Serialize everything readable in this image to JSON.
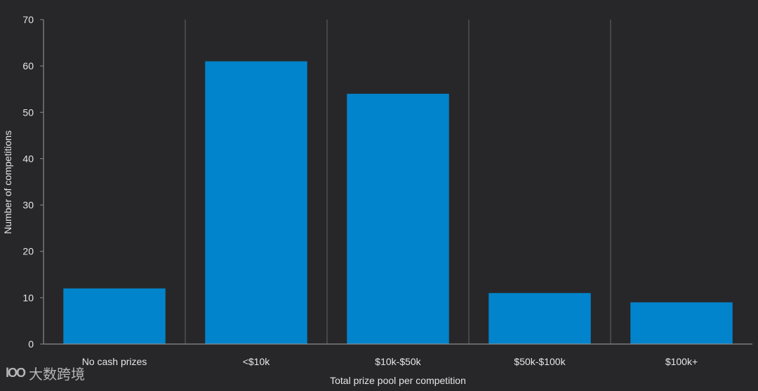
{
  "chart_data": {
    "type": "bar",
    "title": "",
    "xlabel": "Total prize pool per competition",
    "ylabel": "Number of competitions",
    "categories": [
      "No cash prizes",
      "<$10k",
      "$10k-$50k",
      "$50k-$100k",
      "$100k+"
    ],
    "values": [
      12,
      61,
      54,
      11,
      9
    ],
    "ylim": [
      0,
      70
    ],
    "yticks": [
      0,
      10,
      20,
      30,
      40,
      50,
      60,
      70
    ],
    "grid": "vertical separators between categories",
    "bar_color": "#0284cc",
    "background_color": "#27272a",
    "axis_color": "#8a8a8a"
  },
  "watermark": {
    "logo": "lOO",
    "text": "大数跨境"
  }
}
